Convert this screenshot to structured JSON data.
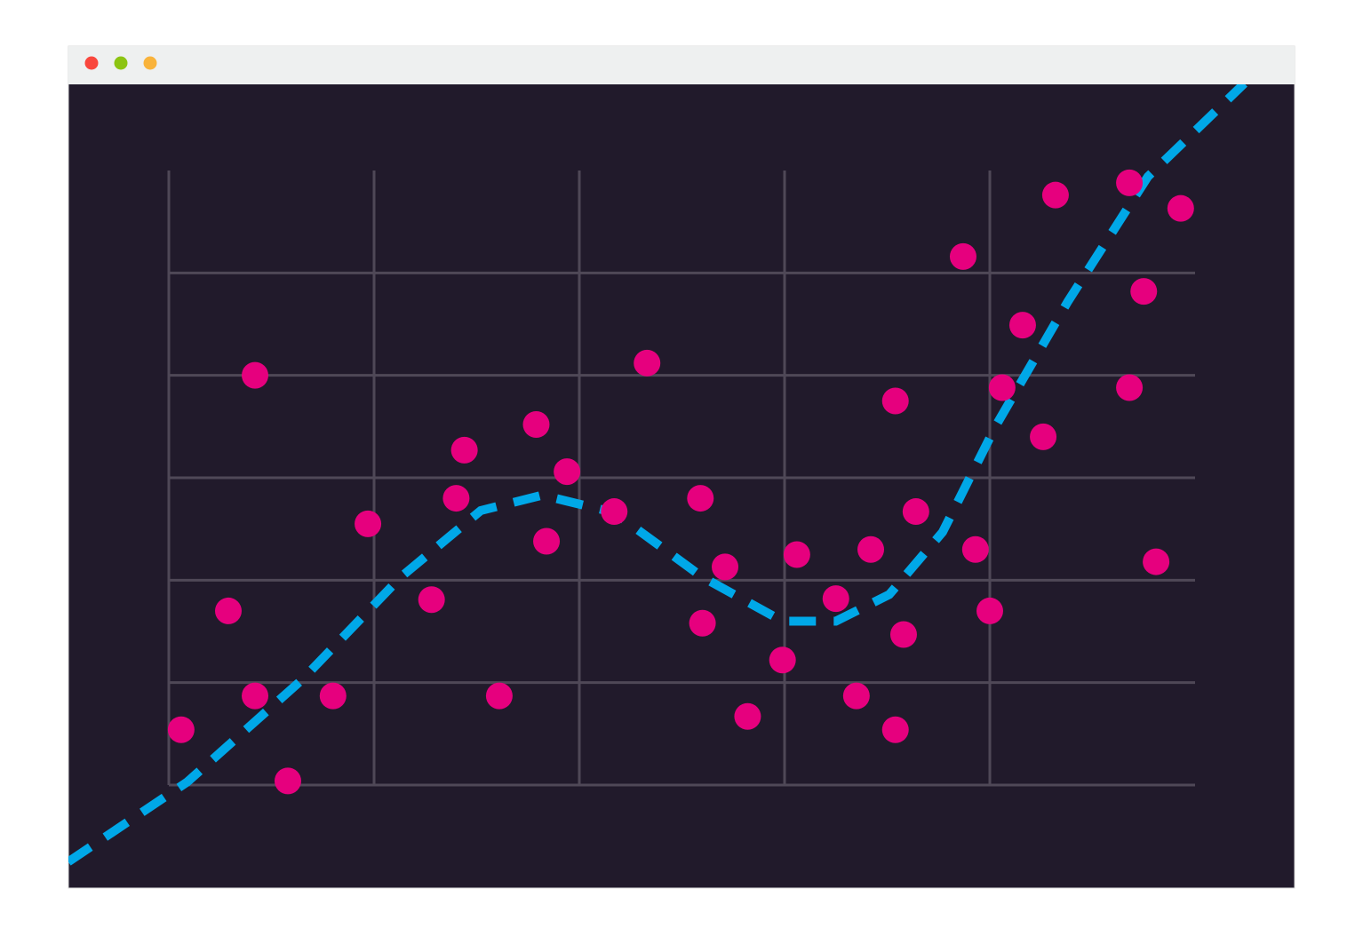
{
  "chart_data": {
    "type": "scatter",
    "grid": true,
    "xlim": [
      0,
      5
    ],
    "ylim": [
      0,
      6
    ],
    "xticks": [
      0,
      1,
      2,
      3,
      4
    ],
    "yticks": [
      0,
      1,
      2,
      3,
      4,
      5
    ],
    "series": [
      {
        "type": "scatter",
        "color": "#e6007e",
        "x": [
          0.06,
          0.29,
          0.42,
          0.42,
          0.58,
          0.8,
          0.97,
          1.28,
          1.4,
          1.44,
          1.61,
          1.79,
          1.84,
          1.94,
          2.17,
          2.33,
          2.59,
          2.6,
          2.71,
          2.82,
          2.99,
          3.06,
          3.25,
          3.35,
          3.42,
          3.54,
          3.54,
          3.58,
          3.64,
          3.87,
          3.93,
          4.0,
          4.06,
          4.16,
          4.26,
          4.32,
          4.68,
          4.68,
          4.75,
          4.81,
          4.93
        ],
        "values": [
          0.54,
          1.7,
          4.0,
          0.87,
          0.04,
          0.87,
          2.55,
          1.81,
          2.8,
          3.27,
          0.87,
          3.52,
          2.38,
          3.06,
          2.67,
          4.12,
          2.8,
          1.58,
          2.13,
          0.67,
          1.22,
          2.25,
          1.82,
          0.87,
          2.3,
          0.54,
          3.75,
          1.47,
          2.67,
          5.16,
          2.3,
          1.7,
          3.88,
          4.49,
          3.4,
          5.76,
          5.88,
          3.88,
          4.82,
          2.18,
          5.63
        ]
      },
      {
        "type": "line",
        "dashed": true,
        "color": "#00a8e8",
        "x": [
          -0.49,
          0.09,
          0.65,
          1.13,
          1.52,
          1.82,
          2.17,
          2.6,
          2.99,
          3.25,
          3.51,
          3.77,
          4.03,
          4.38,
          4.77,
          5.24
        ],
        "values": [
          -0.75,
          0.03,
          1.03,
          2.03,
          2.68,
          2.83,
          2.66,
          2.03,
          1.6,
          1.6,
          1.86,
          2.47,
          3.51,
          4.72,
          5.94,
          6.85
        ]
      }
    ]
  }
}
